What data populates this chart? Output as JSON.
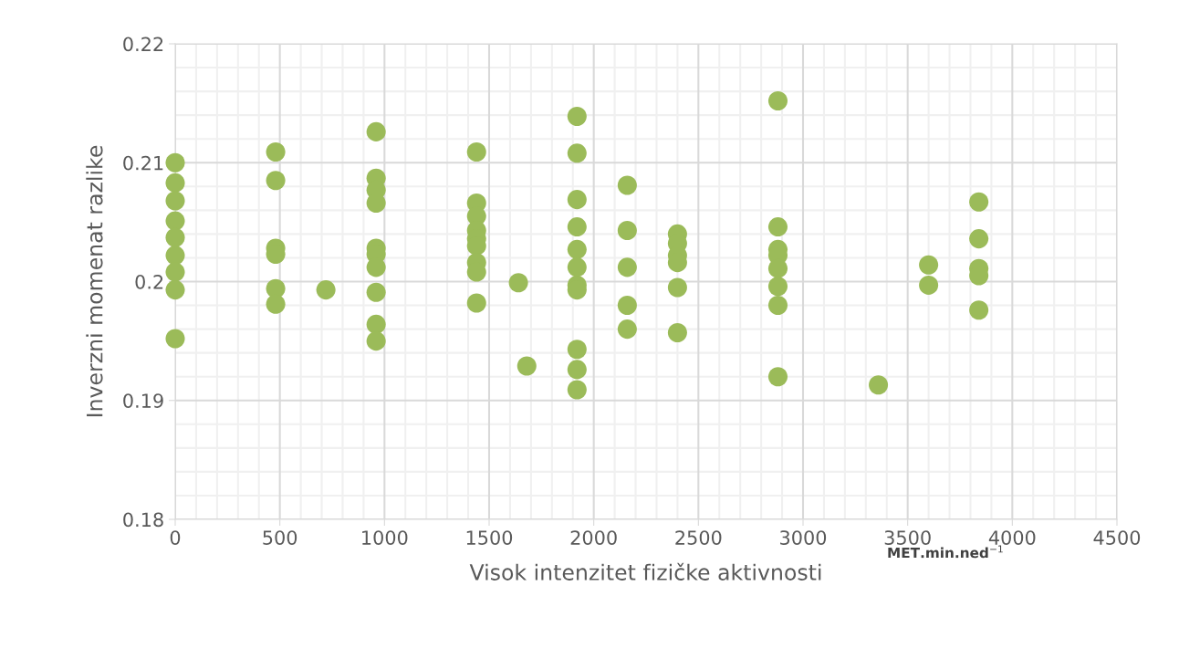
{
  "chart_data": {
    "type": "scatter",
    "xlabel": "Visok intenzitet fizičke aktivnosti",
    "ylabel": "Inverzni momenat razlike",
    "annotations": [
      "MET.min.ned$^{−1}$"
    ],
    "x": [
      0,
      0,
      0,
      0,
      0,
      0,
      0,
      0,
      0,
      480,
      480,
      480,
      480,
      480,
      480,
      720,
      960,
      960,
      960,
      960,
      960,
      960,
      960,
      960,
      960,
      960,
      1440,
      1440,
      1440,
      1440,
      1440,
      1440,
      1440,
      1440,
      1440,
      1640,
      1680,
      1920,
      1920,
      1920,
      1920,
      1920,
      1920,
      1920,
      1920,
      1920,
      1920,
      1920,
      2160,
      2160,
      2160,
      2160,
      2160,
      2400,
      2400,
      2400,
      2400,
      2400,
      2400,
      2880,
      2880,
      2880,
      2880,
      2880,
      2880,
      2880,
      2880,
      3360,
      3600,
      3600,
      3840,
      3840,
      3840,
      3840,
      3840
    ],
    "series": [
      {
        "color": "#9bbb59",
        "values": [
          0.21,
          0.2083,
          0.2068,
          0.2051,
          0.2037,
          0.2022,
          0.2008,
          0.1993,
          0.1952,
          0.2109,
          0.2085,
          0.2028,
          0.2023,
          0.1994,
          0.1981,
          0.1993,
          0.2126,
          0.2087,
          0.2077,
          0.2066,
          0.2028,
          0.2023,
          0.2012,
          0.1991,
          0.1964,
          0.195,
          0.2109,
          0.2066,
          0.2055,
          0.2043,
          0.2036,
          0.203,
          0.2016,
          0.2008,
          0.1982,
          0.1999,
          0.1929,
          0.2139,
          0.2108,
          0.2069,
          0.2046,
          0.2027,
          0.2012,
          0.1997,
          0.1993,
          0.1943,
          0.1926,
          0.1909,
          0.2081,
          0.2043,
          0.2012,
          0.198,
          0.196,
          0.204,
          0.2032,
          0.2022,
          0.2016,
          0.1995,
          0.1957,
          0.2152,
          0.2046,
          0.2027,
          0.2022,
          0.2011,
          0.1996,
          0.198,
          0.192,
          0.1913,
          0.2014,
          0.1997,
          0.2067,
          0.2036,
          0.2011,
          0.2005,
          0.1976
        ]
      }
    ],
    "xlim": [
      0,
      4500
    ],
    "xticks": [
      0,
      500,
      1000,
      1500,
      2000,
      2500,
      3000,
      3500,
      4000,
      4500
    ],
    "ylim": [
      0.18,
      0.22
    ],
    "yticks": [
      0.18,
      0.19,
      {
        "value": 0.2,
        "label": "0.2"
      },
      0.21,
      0.22
    ],
    "grid": true,
    "marker": "circle"
  }
}
